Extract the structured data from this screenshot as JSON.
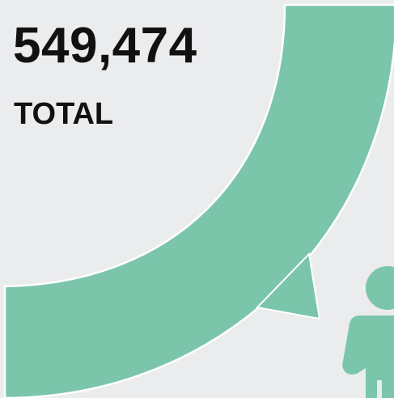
{
  "stat": {
    "value": "549,474",
    "label": "TOTAL"
  },
  "colors": {
    "background": "#ebecee",
    "accent": "#7bc5ab",
    "outline": "#ffffff",
    "text": "#111111"
  },
  "icons": {
    "figure": "person-icon"
  }
}
